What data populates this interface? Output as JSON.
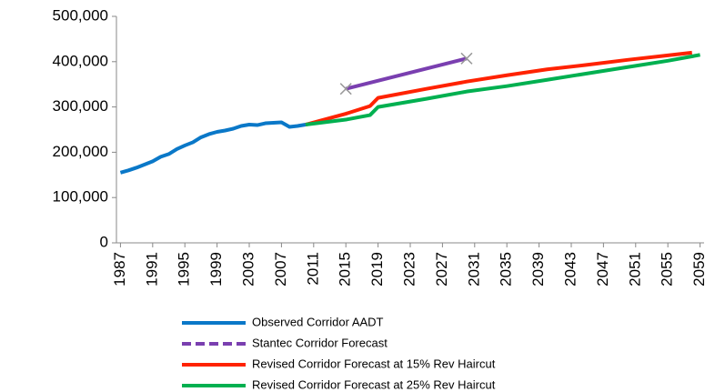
{
  "chart_data": {
    "type": "line",
    "xlim": [
      1986.5,
      2059.5
    ],
    "xticks": [
      1987,
      1991,
      1995,
      1999,
      2003,
      2007,
      2011,
      2015,
      2019,
      2023,
      2027,
      2031,
      2035,
      2039,
      2043,
      2047,
      2051,
      2055,
      2059
    ],
    "ylim": [
      0,
      500000
    ],
    "yticks": [
      0,
      {
        "value": 100000,
        "label": "100,000"
      },
      {
        "value": 200000,
        "label": "200,000"
      },
      {
        "value": 300000,
        "label": "300,000"
      },
      {
        "value": 400000,
        "label": "400,000"
      },
      {
        "value": 500000,
        "label": "500,000"
      }
    ],
    "grid": false,
    "series": [
      {
        "name": "Observed Corridor AADT",
        "color": "#0a78c8",
        "x": [
          1987,
          1988,
          1989,
          1990,
          1991,
          1992,
          1993,
          1994,
          1995,
          1996,
          1997,
          1998,
          1999,
          2000,
          2001,
          2002,
          2003,
          2004,
          2005,
          2006,
          2007,
          2008,
          2009,
          2010
        ],
        "values": [
          155000,
          160000,
          166000,
          173000,
          180000,
          190000,
          196000,
          207000,
          215000,
          222000,
          233000,
          240000,
          245000,
          248000,
          252000,
          258000,
          261000,
          260000,
          264000,
          265000,
          266000,
          256000,
          258000,
          261000
        ]
      },
      {
        "name": "Stantec Corridor Forecast",
        "color": "#7a3fb0",
        "dashed": true,
        "markers": true,
        "x": [
          2015,
          2030
        ],
        "values": [
          340000,
          407000
        ]
      },
      {
        "name": "Revised Corridor Forecast at 15% Rev Haircut",
        "color": "#ff2200",
        "x": [
          2010,
          2015,
          2018,
          2019,
          2025,
          2030,
          2035,
          2040,
          2045,
          2050,
          2055,
          2058
        ],
        "values": [
          261000,
          285000,
          302000,
          320000,
          340000,
          356000,
          370000,
          383000,
          393000,
          404000,
          414000,
          420000
        ]
      },
      {
        "name": "Revised Corridor Forecast at 25% Rev Haircut",
        "color": "#00b050",
        "x": [
          2010,
          2015,
          2018,
          2019,
          2025,
          2030,
          2035,
          2040,
          2045,
          2050,
          2055,
          2059
        ],
        "values": [
          261000,
          272000,
          282000,
          300000,
          318000,
          334000,
          346000,
          360000,
          374000,
          388000,
          402000,
          415000
        ]
      }
    ]
  }
}
